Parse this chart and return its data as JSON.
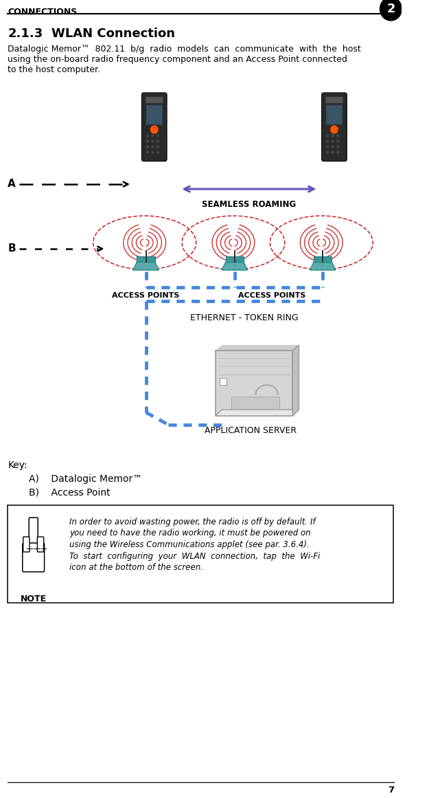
{
  "title_header": "CONNECTIONS",
  "chapter_num": "2",
  "section": "2.1.3",
  "section_title": "WLAN Connection",
  "body_line1": "Datalogic Memor™  802.11  b/g  radio  models  can  communicate  with  the  host",
  "body_line2": "using the on-board radio frequency component and an Access Point connected",
  "body_line3": "to the host computer.",
  "label_A": "A",
  "label_B": "B",
  "seamless_roaming_text": "SEAMLESS ROAMING",
  "access_points_text1": "ACCESS POINTS",
  "access_points_text2": "ACCESS POINTS",
  "ethernet_text": "ETHERNET - TOKEN RING",
  "app_server_text": "APPLICATION SERVER",
  "key_text": "Key:",
  "key_A": "A)    Datalogic Memor™",
  "key_B": "B)    Access Point",
  "note_title": "NOTE",
  "note_line1": "In order to avoid wasting power, the radio is off by default. If",
  "note_line2": "you need to have the radio working, it must be powered on",
  "note_line3": "using the Wireless Communications applet (see par. 3.6.4).",
  "note_line4": "To  start  configuring  your  WLAN  connection,  tap  the  Wi-Fi",
  "note_line5": "icon at the bottom of the screen.",
  "page_num": "7",
  "bg_color": "#ffffff",
  "text_color": "#000000",
  "blue_color": "#4488dd",
  "red_color": "#cc2222",
  "teal_color": "#5aacac",
  "purple_color": "#6655bb",
  "device_color": "#2a2a2a",
  "device_screen": "#3a5565",
  "device_btn": "#ff5500",
  "server_light": "#d8d8d8",
  "server_dark": "#bbbbbb"
}
